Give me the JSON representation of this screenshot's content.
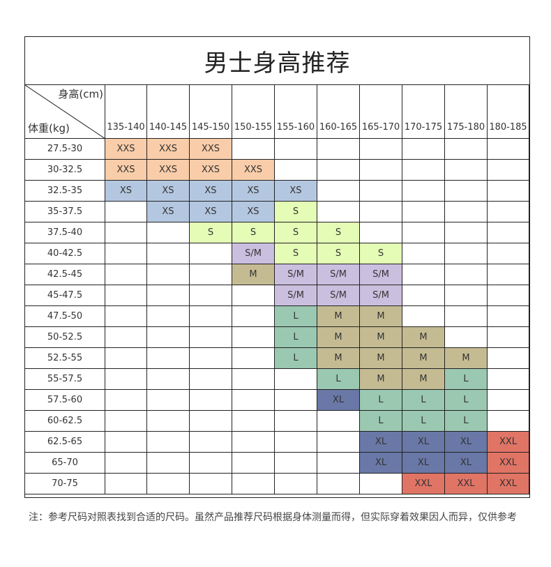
{
  "title": "男士身高推荐",
  "corner": {
    "height_label": "身高(cm)",
    "weight_label": "体重(kg)"
  },
  "heights": [
    "135-140",
    "140-145",
    "145-150",
    "150-155",
    "155-160",
    "160-165",
    "165-170",
    "170-175",
    "175-180",
    "180-185"
  ],
  "rows": [
    {
      "weight": "27.5-30",
      "cells": [
        "XXS",
        "XXS",
        "XXS",
        "",
        "",
        "",
        "",
        "",
        "",
        ""
      ]
    },
    {
      "weight": "30-32.5",
      "cells": [
        "XXS",
        "XXS",
        "XXS",
        "XXS",
        "",
        "",
        "",
        "",
        "",
        ""
      ]
    },
    {
      "weight": "32.5-35",
      "cells": [
        "XS",
        "XS",
        "XS",
        "XS",
        "XS",
        "",
        "",
        "",
        "",
        ""
      ]
    },
    {
      "weight": "35-37.5",
      "cells": [
        "",
        "XS",
        "XS",
        "XS",
        "S",
        "",
        "",
        "",
        "",
        ""
      ]
    },
    {
      "weight": "37.5-40",
      "cells": [
        "",
        "",
        "S",
        "S",
        "S",
        "S",
        "",
        "",
        "",
        ""
      ]
    },
    {
      "weight": "40-42.5",
      "cells": [
        "",
        "",
        "",
        "S/M",
        "S",
        "S",
        "S",
        "",
        "",
        ""
      ]
    },
    {
      "weight": "42.5-45",
      "cells": [
        "",
        "",
        "",
        "M",
        "S/M",
        "S/M",
        "S/M",
        "",
        "",
        ""
      ]
    },
    {
      "weight": "45-47.5",
      "cells": [
        "",
        "",
        "",
        "",
        "S/M",
        "S/M",
        "S/M",
        "",
        "",
        ""
      ]
    },
    {
      "weight": "47.5-50",
      "cells": [
        "",
        "",
        "",
        "",
        "L",
        "M",
        "M",
        "",
        "",
        ""
      ]
    },
    {
      "weight": "50-52.5",
      "cells": [
        "",
        "",
        "",
        "",
        "L",
        "M",
        "M",
        "M",
        "",
        ""
      ]
    },
    {
      "weight": "52.5-55",
      "cells": [
        "",
        "",
        "",
        "",
        "L",
        "M",
        "M",
        "M",
        "M",
        ""
      ]
    },
    {
      "weight": "55-57.5",
      "cells": [
        "",
        "",
        "",
        "",
        "",
        "L",
        "M",
        "M",
        "L",
        ""
      ]
    },
    {
      "weight": "57.5-60",
      "cells": [
        "",
        "",
        "",
        "",
        "",
        "XL",
        "L",
        "L",
        "L",
        ""
      ]
    },
    {
      "weight": "60-62.5",
      "cells": [
        "",
        "",
        "",
        "",
        "",
        "",
        "L",
        "L",
        "L",
        ""
      ]
    },
    {
      "weight": "62.5-65",
      "cells": [
        "",
        "",
        "",
        "",
        "",
        "",
        "XL",
        "XL",
        "XL",
        "XXL"
      ]
    },
    {
      "weight": "65-70",
      "cells": [
        "",
        "",
        "",
        "",
        "",
        "",
        "XL",
        "XL",
        "XL",
        "XXL"
      ]
    },
    {
      "weight": "70-75",
      "cells": [
        "",
        "",
        "",
        "",
        "",
        "",
        "",
        "XXL",
        "XXL",
        "XXL"
      ]
    }
  ],
  "size_colors": {
    "XXS": "#f9cda9",
    "XS": "#b4c7e0",
    "S": "#e4fcb6",
    "S/M": "#cbbfdf",
    "M": "#c5bb93",
    "L-early": "#99c6aa",
    "XL-early": "#6678a6",
    "L": "#9ac8b0",
    "XL": "#6978a6",
    "XXL": "#e07465"
  },
  "note": "注：参考尺码对照表找到合适的尺码。虽然产品推荐尺码根据身体测量而得，但实际穿着效果因人而异，仅供参考"
}
